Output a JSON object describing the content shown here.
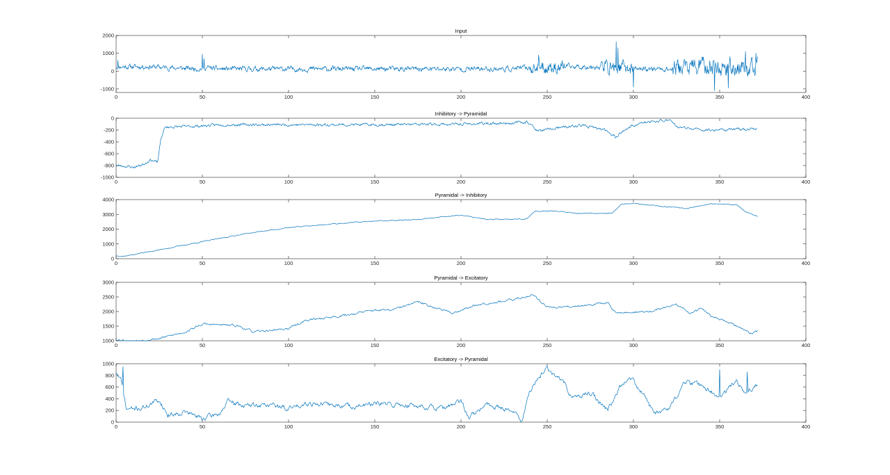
{
  "colors": {
    "series": "#0072BD",
    "axes": "#262626",
    "background": "#ffffff"
  },
  "chart_data": [
    {
      "type": "line",
      "title": "Input",
      "xlim": [
        0,
        400
      ],
      "ylim": [
        -1200,
        2000
      ],
      "xticks": [
        0,
        50,
        100,
        150,
        200,
        250,
        300,
        350,
        400
      ],
      "yticks": [
        -1000,
        0,
        1000,
        2000
      ],
      "series": [
        {
          "x_end": 372,
          "noise": 110,
          "step": 0.25,
          "seed": 11,
          "values": [
            [
              0,
              250
            ],
            [
              20,
              250
            ],
            [
              40,
              150
            ],
            [
              50,
              140
            ],
            [
              52,
              200
            ],
            [
              60,
              120
            ],
            [
              100,
              120
            ],
            [
              150,
              120
            ],
            [
              200,
              120
            ],
            [
              230,
              130
            ],
            [
              240,
              200
            ],
            [
              260,
              250
            ],
            [
              280,
              250
            ],
            [
              300,
              150
            ],
            [
              320,
              120
            ],
            [
              340,
              280
            ],
            [
              372,
              150
            ]
          ],
          "spikes": [
            [
              1,
              600
            ],
            [
              50,
              950
            ],
            [
              51,
              700
            ],
            [
              245,
              900
            ],
            [
              290,
              1650
            ],
            [
              291,
              1300
            ],
            [
              300,
              -900
            ],
            [
              347,
              -1100
            ],
            [
              371,
              1000
            ],
            [
              365,
              1100
            ],
            [
              355,
              -950
            ]
          ],
          "burst": [
            [
              240,
              260,
              2.6
            ],
            [
              280,
              300,
              2.6
            ],
            [
              322,
              372,
              3.5
            ]
          ]
        }
      ]
    },
    {
      "type": "line",
      "title": "Inhibitory -> Pyramidal",
      "xlim": [
        0,
        400
      ],
      "ylim": [
        -1000,
        0
      ],
      "xticks": [
        0,
        50,
        100,
        150,
        200,
        250,
        300,
        350,
        400
      ],
      "yticks": [
        -1000,
        -800,
        -600,
        -400,
        -200,
        0
      ],
      "series": [
        {
          "x_end": 372,
          "noise": 18,
          "step": 0.3,
          "seed": 23,
          "values": [
            [
              0,
              -800
            ],
            [
              5,
              -810
            ],
            [
              10,
              -830
            ],
            [
              15,
              -790
            ],
            [
              20,
              -700
            ],
            [
              24,
              -750
            ],
            [
              26,
              -350
            ],
            [
              27,
              -260
            ],
            [
              28,
              -170
            ],
            [
              30,
              -150
            ],
            [
              40,
              -140
            ],
            [
              50,
              -130
            ],
            [
              60,
              -110
            ],
            [
              100,
              -110
            ],
            [
              150,
              -110
            ],
            [
              200,
              -100
            ],
            [
              230,
              -80
            ],
            [
              238,
              -60
            ],
            [
              245,
              -220
            ],
            [
              255,
              -170
            ],
            [
              270,
              -120
            ],
            [
              285,
              -210
            ],
            [
              290,
              -330
            ],
            [
              292,
              -250
            ],
            [
              300,
              -120
            ],
            [
              305,
              -80
            ],
            [
              315,
              -50
            ],
            [
              322,
              -20
            ],
            [
              325,
              -150
            ],
            [
              340,
              -200
            ],
            [
              355,
              -190
            ],
            [
              372,
              -180
            ]
          ]
        }
      ]
    },
    {
      "type": "line",
      "title": "Pyramidal -> Inhibitory",
      "xlim": [
        0,
        400
      ],
      "ylim": [
        0,
        4000
      ],
      "xticks": [
        0,
        50,
        100,
        150,
        200,
        250,
        300,
        350,
        400
      ],
      "yticks": [
        0,
        1000,
        2000,
        3000,
        4000
      ],
      "series": [
        {
          "x_end": 372,
          "noise": 25,
          "step": 0.5,
          "seed": 37,
          "values": [
            [
              0,
              200
            ],
            [
              5,
              180
            ],
            [
              25,
              600
            ],
            [
              50,
              1150
            ],
            [
              75,
              1700
            ],
            [
              100,
              2100
            ],
            [
              125,
              2350
            ],
            [
              150,
              2550
            ],
            [
              175,
              2650
            ],
            [
              200,
              2950
            ],
            [
              215,
              2650
            ],
            [
              238,
              2700
            ],
            [
              243,
              3200
            ],
            [
              255,
              3250
            ],
            [
              270,
              3050
            ],
            [
              288,
              3100
            ],
            [
              293,
              3700
            ],
            [
              300,
              3750
            ],
            [
              310,
              3600
            ],
            [
              330,
              3400
            ],
            [
              345,
              3700
            ],
            [
              360,
              3650
            ],
            [
              365,
              3200
            ],
            [
              372,
              2850
            ]
          ]
        }
      ]
    },
    {
      "type": "line",
      "title": "Pyramidal -> Excitatory",
      "xlim": [
        0,
        400
      ],
      "ylim": [
        1000,
        3000
      ],
      "xticks": [
        0,
        50,
        100,
        150,
        200,
        250,
        300,
        350,
        400
      ],
      "yticks": [
        1000,
        1500,
        2000,
        2500,
        3000
      ],
      "series": [
        {
          "x_end": 372,
          "noise": 30,
          "step": 0.4,
          "seed": 53,
          "values": [
            [
              0,
              1050
            ],
            [
              10,
              990
            ],
            [
              25,
              1080
            ],
            [
              40,
              1300
            ],
            [
              50,
              1570
            ],
            [
              70,
              1520
            ],
            [
              80,
              1300
            ],
            [
              100,
              1420
            ],
            [
              110,
              1700
            ],
            [
              130,
              1850
            ],
            [
              150,
              2050
            ],
            [
              160,
              2050
            ],
            [
              175,
              2330
            ],
            [
              195,
              1950
            ],
            [
              210,
              2250
            ],
            [
              230,
              2400
            ],
            [
              242,
              2580
            ],
            [
              250,
              2150
            ],
            [
              260,
              2150
            ],
            [
              285,
              2300
            ],
            [
              290,
              1950
            ],
            [
              310,
              2000
            ],
            [
              325,
              2250
            ],
            [
              332,
              1950
            ],
            [
              340,
              2100
            ],
            [
              345,
              1850
            ],
            [
              360,
              1500
            ],
            [
              368,
              1250
            ],
            [
              372,
              1350
            ]
          ]
        }
      ]
    },
    {
      "type": "line",
      "title": "Excitatory -> Pyramidal",
      "xlim": [
        0,
        400
      ],
      "ylim": [
        0,
        1000
      ],
      "xticks": [
        0,
        50,
        100,
        150,
        200,
        250,
        300,
        350,
        400
      ],
      "yticks": [
        0,
        200,
        400,
        600,
        800,
        1000
      ],
      "series": [
        {
          "x_end": 372,
          "noise": 35,
          "step": 0.4,
          "seed": 71,
          "values": [
            [
              0,
              850
            ],
            [
              3,
              700
            ],
            [
              6,
              220
            ],
            [
              15,
              240
            ],
            [
              25,
              380
            ],
            [
              30,
              120
            ],
            [
              40,
              180
            ],
            [
              50,
              60
            ],
            [
              60,
              150
            ],
            [
              65,
              350
            ],
            [
              75,
              280
            ],
            [
              90,
              300
            ],
            [
              100,
              230
            ],
            [
              110,
              330
            ],
            [
              125,
              290
            ],
            [
              140,
              270
            ],
            [
              150,
              310
            ],
            [
              160,
              300
            ],
            [
              175,
              280
            ],
            [
              190,
              230
            ],
            [
              200,
              350
            ],
            [
              205,
              80
            ],
            [
              215,
              300
            ],
            [
              230,
              200
            ],
            [
              235,
              20
            ],
            [
              240,
              520
            ],
            [
              245,
              780
            ],
            [
              250,
              920
            ],
            [
              260,
              650
            ],
            [
              265,
              400
            ],
            [
              275,
              500
            ],
            [
              285,
              200
            ],
            [
              292,
              600
            ],
            [
              298,
              800
            ],
            [
              305,
              500
            ],
            [
              312,
              150
            ],
            [
              320,
              250
            ],
            [
              325,
              420
            ],
            [
              330,
              700
            ],
            [
              340,
              620
            ],
            [
              350,
              420
            ],
            [
              360,
              730
            ],
            [
              365,
              460
            ],
            [
              372,
              650
            ]
          ],
          "spikes": [
            [
              4,
              950
            ],
            [
              250,
              960
            ],
            [
              350,
              900
            ],
            [
              366,
              860
            ]
          ]
        }
      ]
    }
  ]
}
